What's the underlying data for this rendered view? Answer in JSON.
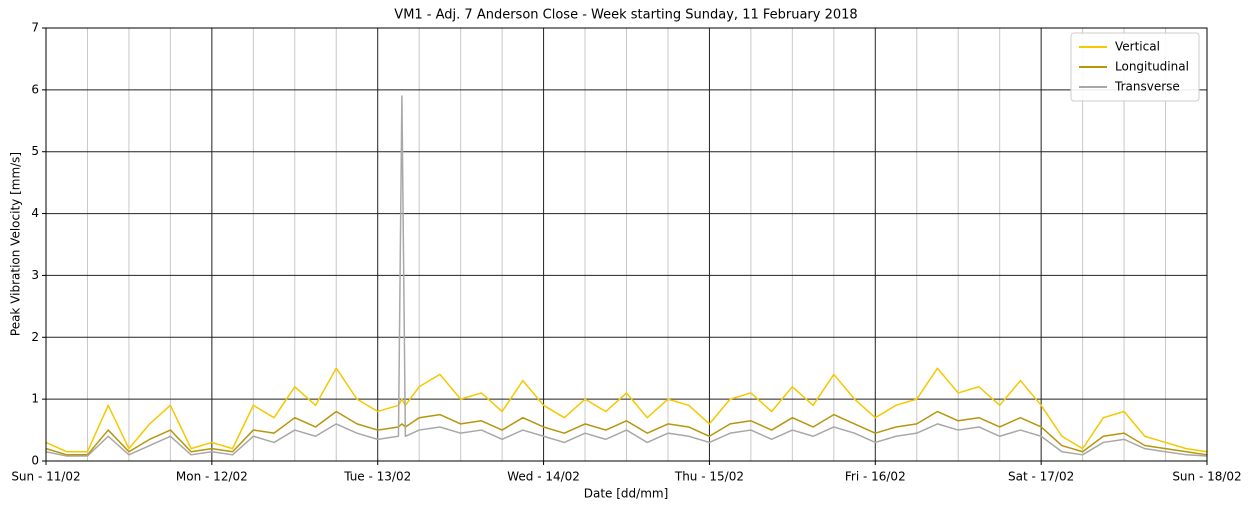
{
  "chart_data": {
    "type": "line",
    "title": "VM1 - Adj. 7 Anderson Close - Week starting Sunday, 11 February 2018",
    "x_label": "Date [dd/mm]",
    "y_label": "Peak Vibration Velocity [mm/s]",
    "x": [
      0,
      3,
      6,
      9,
      12,
      15,
      18,
      21,
      24,
      27,
      30,
      33,
      36,
      39,
      42,
      45,
      48,
      51,
      51.5,
      52,
      54,
      57,
      60,
      63,
      66,
      69,
      72,
      75,
      78,
      81,
      84,
      87,
      90,
      93,
      96,
      99,
      102,
      105,
      108,
      111,
      114,
      117,
      120,
      123,
      126,
      129,
      132,
      135,
      138,
      141,
      144,
      147,
      150,
      153,
      156,
      159,
      162,
      165,
      168
    ],
    "series": [
      {
        "name": "Vertical",
        "color": "#f5c800",
        "values": [
          0.3,
          0.15,
          0.15,
          0.9,
          0.2,
          0.6,
          0.9,
          0.2,
          0.3,
          0.2,
          0.9,
          0.7,
          1.2,
          0.9,
          1.5,
          1.0,
          0.8,
          0.9,
          1.0,
          0.9,
          1.2,
          1.4,
          1.0,
          1.1,
          0.8,
          1.3,
          0.9,
          0.7,
          1.0,
          0.8,
          1.1,
          0.7,
          1.0,
          0.9,
          0.6,
          1.0,
          1.1,
          0.8,
          1.2,
          0.9,
          1.4,
          1.0,
          0.7,
          0.9,
          1.0,
          1.5,
          1.1,
          1.2,
          0.9,
          1.3,
          0.9,
          0.4,
          0.2,
          0.7,
          0.8,
          0.4,
          0.3,
          0.2,
          0.15
        ]
      },
      {
        "name": "Longitudinal",
        "color": "#b8960c",
        "values": [
          0.2,
          0.1,
          0.1,
          0.5,
          0.15,
          0.35,
          0.5,
          0.15,
          0.2,
          0.15,
          0.5,
          0.45,
          0.7,
          0.55,
          0.8,
          0.6,
          0.5,
          0.55,
          0.6,
          0.55,
          0.7,
          0.75,
          0.6,
          0.65,
          0.5,
          0.7,
          0.55,
          0.45,
          0.6,
          0.5,
          0.65,
          0.45,
          0.6,
          0.55,
          0.4,
          0.6,
          0.65,
          0.5,
          0.7,
          0.55,
          0.75,
          0.6,
          0.45,
          0.55,
          0.6,
          0.8,
          0.65,
          0.7,
          0.55,
          0.7,
          0.55,
          0.25,
          0.15,
          0.4,
          0.45,
          0.25,
          0.2,
          0.15,
          0.1
        ]
      },
      {
        "name": "Transverse",
        "color": "#a8a8a8",
        "values": [
          0.15,
          0.08,
          0.08,
          0.4,
          0.1,
          0.25,
          0.4,
          0.1,
          0.15,
          0.1,
          0.4,
          0.3,
          0.5,
          0.4,
          0.6,
          0.45,
          0.35,
          0.4,
          5.9,
          0.4,
          0.5,
          0.55,
          0.45,
          0.5,
          0.35,
          0.5,
          0.4,
          0.3,
          0.45,
          0.35,
          0.5,
          0.3,
          0.45,
          0.4,
          0.3,
          0.45,
          0.5,
          0.35,
          0.5,
          0.4,
          0.55,
          0.45,
          0.3,
          0.4,
          0.45,
          0.6,
          0.5,
          0.55,
          0.4,
          0.5,
          0.4,
          0.15,
          0.1,
          0.3,
          0.35,
          0.2,
          0.15,
          0.1,
          0.08
        ]
      }
    ],
    "xlim": [
      0,
      168
    ],
    "xticks": [
      {
        "value": 0,
        "label": "Sun - 11/02"
      },
      {
        "value": 24,
        "label": "Mon - 12/02"
      },
      {
        "value": 48,
        "label": "Tue - 13/02"
      },
      {
        "value": 72,
        "label": "Wed - 14/02"
      },
      {
        "value": 96,
        "label": "Thu - 15/02"
      },
      {
        "value": 120,
        "label": "Fri - 16/02"
      },
      {
        "value": 144,
        "label": "Sat - 17/02"
      },
      {
        "value": 168,
        "label": "Sun - 18/02"
      }
    ],
    "xminorticks": [
      6,
      12,
      18,
      30,
      36,
      42,
      54,
      60,
      66,
      78,
      84,
      90,
      102,
      108,
      114,
      126,
      132,
      138,
      150,
      156,
      162
    ],
    "ylim": [
      0,
      7
    ],
    "yticks": [
      0,
      1,
      2,
      3,
      4,
      5,
      6,
      7
    ],
    "grid": true,
    "legend": "upper right"
  }
}
